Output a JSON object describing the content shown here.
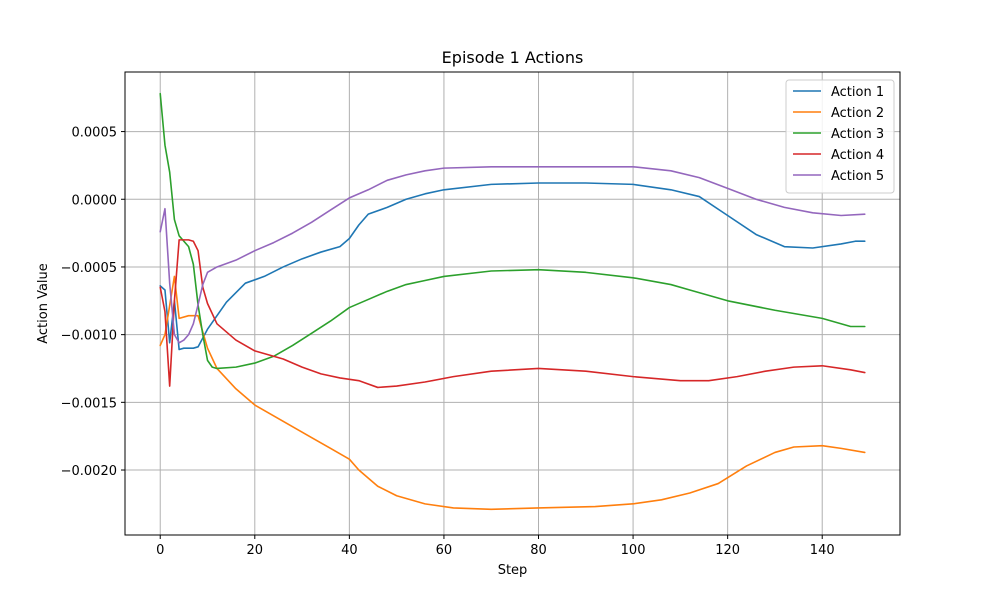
{
  "chart_data": {
    "type": "line",
    "title": "Episode 1 Actions",
    "xlabel": "Step",
    "ylabel": "Action Value",
    "xlim": [
      -7.45,
      156.45
    ],
    "ylim": [
      -0.00248,
      0.00094
    ],
    "xticks": [
      0,
      20,
      40,
      60,
      80,
      100,
      120,
      140
    ],
    "xtick_labels": [
      "0",
      "20",
      "40",
      "60",
      "80",
      "100",
      "120",
      "140"
    ],
    "yticks": [
      -0.002,
      -0.0015,
      -0.001,
      -0.0005,
      0.0,
      0.0005
    ],
    "ytick_labels": [
      "−0.0020",
      "−0.0015",
      "−0.0010",
      "−0.0005",
      "0.0000",
      "0.0005"
    ],
    "grid": true,
    "legend": "top-right",
    "series": [
      {
        "name": "Action 1",
        "color": "#1f77b4",
        "points": [
          [
            0,
            -0.00064
          ],
          [
            1,
            -0.00067
          ],
          [
            2,
            -0.00106
          ],
          [
            3,
            -0.00075
          ],
          [
            4,
            -0.00111
          ],
          [
            5,
            -0.0011
          ],
          [
            7,
            -0.0011
          ],
          [
            8,
            -0.00109
          ],
          [
            10,
            -0.00096
          ],
          [
            14,
            -0.00076
          ],
          [
            18,
            -0.00062
          ],
          [
            22,
            -0.00057
          ],
          [
            26,
            -0.0005
          ],
          [
            30,
            -0.00044
          ],
          [
            34,
            -0.00039
          ],
          [
            38,
            -0.00035
          ],
          [
            40,
            -0.00029
          ],
          [
            42,
            -0.00019
          ],
          [
            44,
            -0.00011
          ],
          [
            48,
            -6e-05
          ],
          [
            52,
            0.0
          ],
          [
            56,
            4e-05
          ],
          [
            60,
            7e-05
          ],
          [
            70,
            0.00011
          ],
          [
            80,
            0.00012
          ],
          [
            90,
            0.00012
          ],
          [
            100,
            0.00011
          ],
          [
            108,
            7e-05
          ],
          [
            114,
            2e-05
          ],
          [
            120,
            -0.00012
          ],
          [
            126,
            -0.00026
          ],
          [
            132,
            -0.00035
          ],
          [
            138,
            -0.00036
          ],
          [
            144,
            -0.00033
          ],
          [
            147,
            -0.00031
          ],
          [
            149,
            -0.00031
          ]
        ]
      },
      {
        "name": "Action 2",
        "color": "#ff7f0e",
        "points": [
          [
            0,
            -0.00108
          ],
          [
            1,
            -0.001
          ],
          [
            3,
            -0.00057
          ],
          [
            4,
            -0.00088
          ],
          [
            6,
            -0.00086
          ],
          [
            8,
            -0.00086
          ],
          [
            10,
            -0.0011
          ],
          [
            12,
            -0.00125
          ],
          [
            16,
            -0.0014
          ],
          [
            20,
            -0.00152
          ],
          [
            26,
            -0.00164
          ],
          [
            32,
            -0.00176
          ],
          [
            36,
            -0.00184
          ],
          [
            40,
            -0.00192
          ],
          [
            42,
            -0.002
          ],
          [
            46,
            -0.00212
          ],
          [
            50,
            -0.00219
          ],
          [
            56,
            -0.00225
          ],
          [
            62,
            -0.00228
          ],
          [
            70,
            -0.00229
          ],
          [
            80,
            -0.00228
          ],
          [
            92,
            -0.00227
          ],
          [
            100,
            -0.00225
          ],
          [
            106,
            -0.00222
          ],
          [
            112,
            -0.00217
          ],
          [
            118,
            -0.0021
          ],
          [
            124,
            -0.00197
          ],
          [
            130,
            -0.00187
          ],
          [
            134,
            -0.00183
          ],
          [
            140,
            -0.00182
          ],
          [
            144,
            -0.00184
          ],
          [
            149,
            -0.00187
          ]
        ]
      },
      {
        "name": "Action 3",
        "color": "#2ca02c",
        "points": [
          [
            0,
            0.00078
          ],
          [
            1,
            0.0004
          ],
          [
            2,
            0.0002
          ],
          [
            3,
            -0.00015
          ],
          [
            4,
            -0.00027
          ],
          [
            5,
            -0.00031
          ],
          [
            6,
            -0.00035
          ],
          [
            7,
            -0.00048
          ],
          [
            8,
            -0.00078
          ],
          [
            9,
            -0.001
          ],
          [
            10,
            -0.00119
          ],
          [
            11,
            -0.00124
          ],
          [
            12,
            -0.00125
          ],
          [
            16,
            -0.00124
          ],
          [
            20,
            -0.00121
          ],
          [
            24,
            -0.00116
          ],
          [
            28,
            -0.00108
          ],
          [
            32,
            -0.00099
          ],
          [
            36,
            -0.0009
          ],
          [
            40,
            -0.0008
          ],
          [
            44,
            -0.00074
          ],
          [
            48,
            -0.00068
          ],
          [
            52,
            -0.00063
          ],
          [
            56,
            -0.0006
          ],
          [
            60,
            -0.00057
          ],
          [
            70,
            -0.00053
          ],
          [
            80,
            -0.00052
          ],
          [
            90,
            -0.00054
          ],
          [
            100,
            -0.00058
          ],
          [
            108,
            -0.00063
          ],
          [
            112,
            -0.00067
          ],
          [
            120,
            -0.00075
          ],
          [
            130,
            -0.00082
          ],
          [
            140,
            -0.00088
          ],
          [
            146,
            -0.00094
          ],
          [
            149,
            -0.00094
          ]
        ]
      },
      {
        "name": "Action 4",
        "color": "#d62728",
        "points": [
          [
            0,
            -0.00065
          ],
          [
            1,
            -0.00083
          ],
          [
            2,
            -0.00138
          ],
          [
            3,
            -0.00075
          ],
          [
            4,
            -0.0003
          ],
          [
            6,
            -0.0003
          ],
          [
            7,
            -0.00031
          ],
          [
            8,
            -0.00038
          ],
          [
            9,
            -0.00065
          ],
          [
            10,
            -0.00077
          ],
          [
            12,
            -0.00092
          ],
          [
            16,
            -0.00104
          ],
          [
            20,
            -0.00112
          ],
          [
            26,
            -0.00118
          ],
          [
            30,
            -0.00124
          ],
          [
            34,
            -0.00129
          ],
          [
            38,
            -0.00132
          ],
          [
            42,
            -0.00134
          ],
          [
            46,
            -0.00139
          ],
          [
            50,
            -0.00138
          ],
          [
            56,
            -0.00135
          ],
          [
            62,
            -0.00131
          ],
          [
            70,
            -0.00127
          ],
          [
            80,
            -0.00125
          ],
          [
            90,
            -0.00127
          ],
          [
            100,
            -0.00131
          ],
          [
            110,
            -0.00134
          ],
          [
            116,
            -0.00134
          ],
          [
            122,
            -0.00131
          ],
          [
            128,
            -0.00127
          ],
          [
            134,
            -0.00124
          ],
          [
            140,
            -0.00123
          ],
          [
            146,
            -0.00126
          ],
          [
            149,
            -0.00128
          ]
        ]
      },
      {
        "name": "Action 5",
        "color": "#9467bd",
        "points": [
          [
            0,
            -0.00024
          ],
          [
            1,
            -7e-05
          ],
          [
            2,
            -0.00062
          ],
          [
            3,
            -0.001
          ],
          [
            4,
            -0.00106
          ],
          [
            5,
            -0.00104
          ],
          [
            6,
            -0.001
          ],
          [
            7,
            -0.00092
          ],
          [
            8,
            -0.00078
          ],
          [
            9,
            -0.00063
          ],
          [
            10,
            -0.00054
          ],
          [
            12,
            -0.0005
          ],
          [
            16,
            -0.00045
          ],
          [
            20,
            -0.00038
          ],
          [
            24,
            -0.00032
          ],
          [
            28,
            -0.00025
          ],
          [
            32,
            -0.00017
          ],
          [
            36,
            -8e-05
          ],
          [
            40,
            1e-05
          ],
          [
            44,
            7e-05
          ],
          [
            48,
            0.00014
          ],
          [
            52,
            0.00018
          ],
          [
            56,
            0.00021
          ],
          [
            60,
            0.00023
          ],
          [
            70,
            0.00024
          ],
          [
            80,
            0.00024
          ],
          [
            90,
            0.00024
          ],
          [
            100,
            0.00024
          ],
          [
            108,
            0.00021
          ],
          [
            114,
            0.00016
          ],
          [
            120,
            8e-05
          ],
          [
            126,
            0.0
          ],
          [
            132,
            -6e-05
          ],
          [
            138,
            -0.0001
          ],
          [
            144,
            -0.00012
          ],
          [
            149,
            -0.00011
          ]
        ]
      }
    ]
  }
}
